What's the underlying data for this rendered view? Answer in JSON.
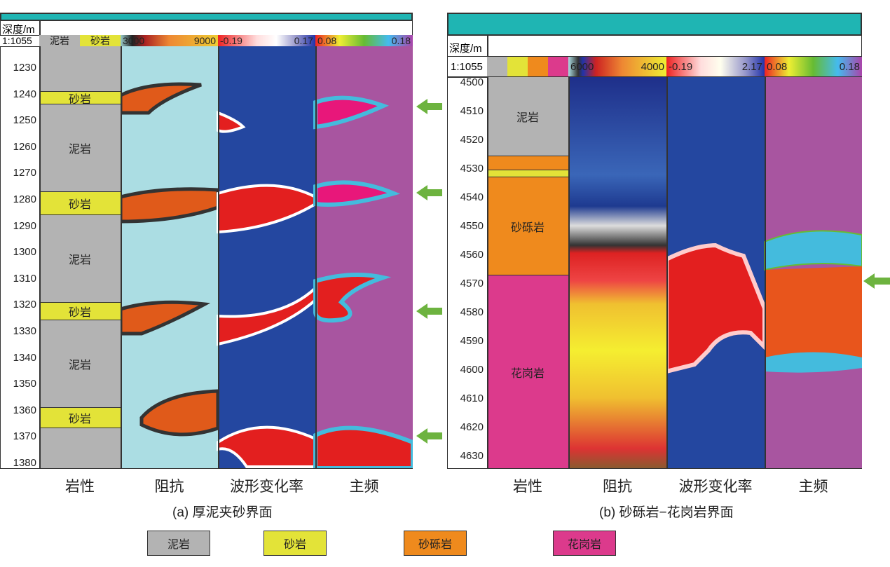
{
  "left": {
    "depth_header": "深度/m",
    "scale": "1:1055",
    "legend_mud": "泥岩",
    "legend_sand": "砂岩",
    "imp_range": [
      "3000",
      "9000"
    ],
    "wave_range": [
      "-0.19",
      "0.17"
    ],
    "freq_range": [
      "0.08",
      "0.18"
    ],
    "depths": [
      "1230",
      "1240",
      "1250",
      "1260",
      "1270",
      "1280",
      "1290",
      "1300",
      "1310",
      "1320",
      "1330",
      "1340",
      "1350",
      "1360",
      "1370",
      "1380"
    ],
    "litho": [
      "砂岩",
      "泥岩",
      "砂岩",
      "泥岩",
      "砂岩",
      "泥岩",
      "砂岩"
    ],
    "columns": [
      "岩性",
      "阻抗",
      "波形变化率",
      "主频"
    ],
    "caption": "(a) 厚泥夹砂界面"
  },
  "right": {
    "depth_header": "深度/m",
    "scale": "1:1055",
    "imp_range": [
      "6000",
      "4000"
    ],
    "wave_range": [
      "-0.19",
      "2.17"
    ],
    "freq_range": [
      "0.08",
      "0.18"
    ],
    "depths": [
      "4500",
      "4510",
      "4520",
      "4530",
      "4540",
      "4550",
      "4560",
      "4570",
      "4580",
      "4590",
      "4600",
      "4610",
      "4620",
      "4630"
    ],
    "litho": [
      "泥岩",
      "砂砾岩",
      "花岗岩"
    ],
    "columns": [
      "岩性",
      "阻抗",
      "波形变化率",
      "主频"
    ],
    "caption": "(b) 砂砾岩−花岗岩界面"
  },
  "legend": [
    "泥岩",
    "砂岩",
    "砂砾岩",
    "花岗岩"
  ],
  "colors": {
    "mud": "#b3b3b3",
    "sand": "#e3e338",
    "gravel": "#ef8a1d",
    "granite": "#dc3a8c",
    "arrow": "#6db33f"
  }
}
